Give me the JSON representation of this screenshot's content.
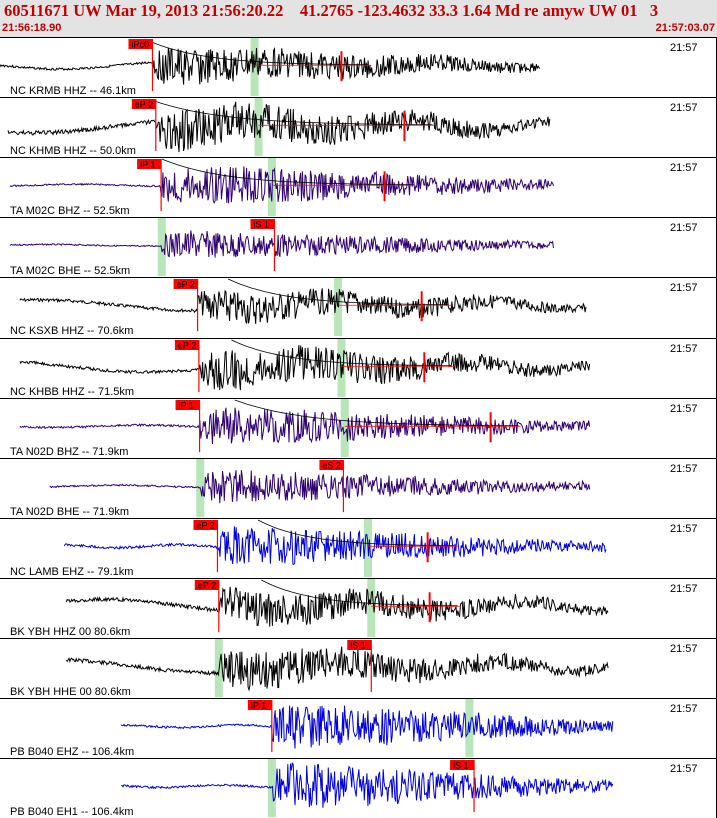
{
  "header": {
    "title": "60511671 UW Mar 19, 2013 21:56:20.22    41.2765 -123.4632 33.3 1.64 Md re amyw UW 01   3",
    "time_start": "21:56:18.90",
    "time_end": "21:57:03.07"
  },
  "colors": {
    "header_bg": "#e3e3e3",
    "header_text": "#c00000",
    "pick": "#ff0000",
    "window": "#b8e6b8",
    "trace_black": "#000000",
    "trace_purple": "#300070",
    "trace_blue": "#0000dd"
  },
  "chart_data": {
    "type": "line",
    "time_range": [
      "21:56:18.90",
      "21:57:03.07"
    ],
    "time_tick_label": "21:57",
    "traces": [
      {
        "label": "NC KRMB HHZ -- 46.1km",
        "pick": "iPc0",
        "pick_pos": 0.23,
        "window_pos": 0.384,
        "onset": 0.23,
        "amp_pre": 0.2,
        "amp_post": 0.75,
        "end": 0.815,
        "start": 0.0,
        "color": "black",
        "freq": 3.0,
        "spikes": [
          0.515
        ],
        "coda": true
      },
      {
        "label": "NC KHMB HHZ -- 50.0km",
        "pick": "eP 2",
        "pick_pos": 0.235,
        "window_pos": 0.39,
        "onset": 0.235,
        "amp_pre": 0.4,
        "amp_post": 0.85,
        "end": 0.83,
        "start": 0.012,
        "color": "black",
        "freq": 2.0,
        "spikes": [
          0.61
        ],
        "coda": true
      },
      {
        "label": "TA M02C BHZ -- 52.5km",
        "pick": "iP 1",
        "pick_pos": 0.243,
        "window_pos": 0.41,
        "onset": 0.243,
        "amp_pre": 0.05,
        "amp_post": 0.8,
        "end": 0.835,
        "start": 0.015,
        "color": "purple",
        "freq": 4.0,
        "spikes": [
          0.58
        ],
        "coda": true
      },
      {
        "label": "TA M02C BHE -- 52.5km",
        "pick": "iS 1",
        "pick_pos": 0.414,
        "window_pos": 0.244,
        "onset": 0.244,
        "amp_pre": 0.04,
        "amp_post": 0.55,
        "end": 0.835,
        "start": 0.015,
        "color": "purple",
        "freq": 4.0,
        "spikes": [],
        "coda": false
      },
      {
        "label": "NC KSXB HHZ -- 70.6km",
        "pick": "eP 2",
        "pick_pos": 0.298,
        "window_pos": 0.51,
        "onset": 0.298,
        "amp_pre": 0.28,
        "amp_post": 0.65,
        "end": 0.885,
        "start": 0.03,
        "color": "black",
        "freq": 2.2,
        "spikes": [
          0.636
        ],
        "coda": true
      },
      {
        "label": "NC KHBB HHZ -- 71.5km",
        "pick": "eP 2",
        "pick_pos": 0.3,
        "window_pos": 0.515,
        "onset": 0.3,
        "amp_pre": 0.3,
        "amp_post": 0.8,
        "end": 0.89,
        "start": 0.03,
        "color": "black",
        "freq": 2.2,
        "spikes": [
          0.64
        ],
        "coda": true
      },
      {
        "label": "TA N02D BHZ -- 71.9km",
        "pick": "iP 1",
        "pick_pos": 0.301,
        "window_pos": 0.52,
        "onset": 0.301,
        "amp_pre": 0.06,
        "amp_post": 0.75,
        "end": 0.89,
        "start": 0.03,
        "color": "purple",
        "freq": 4.0,
        "spikes": [
          0.74
        ],
        "coda": true
      },
      {
        "label": "TA N02D BHE -- 71.9km",
        "pick": "eS 2",
        "pick_pos": 0.518,
        "window_pos": 0.302,
        "onset": 0.302,
        "amp_pre": 0.05,
        "amp_post": 0.65,
        "end": 0.89,
        "start": 0.075,
        "color": "purple",
        "freq": 4.0,
        "spikes": [],
        "coda": false
      },
      {
        "label": "NC LAMB EHZ -- 79.1km",
        "pick": "eP 2",
        "pick_pos": 0.328,
        "window_pos": 0.555,
        "onset": 0.328,
        "amp_pre": 0.08,
        "amp_post": 0.75,
        "end": 0.915,
        "start": 0.097,
        "color": "blue",
        "freq": 6.0,
        "spikes": [
          0.645
        ],
        "coda": true
      },
      {
        "label": "BK YBH HHZ 00 80.6km",
        "pick": "eP 2",
        "pick_pos": 0.33,
        "window_pos": 0.56,
        "onset": 0.33,
        "amp_pre": 0.35,
        "amp_post": 0.7,
        "end": 0.918,
        "start": 0.1,
        "color": "black",
        "freq": 2.2,
        "spikes": [
          0.648
        ],
        "coda": true
      },
      {
        "label": "BK YBH HHE 00 80.6km",
        "pick": "iS 1",
        "pick_pos": 0.56,
        "window_pos": 0.33,
        "onset": 0.33,
        "amp_pre": 0.35,
        "amp_post": 0.75,
        "end": 0.918,
        "start": 0.1,
        "color": "black",
        "freq": 2.2,
        "spikes": [],
        "coda": false
      },
      {
        "label": "PB B040 EHZ -- 106.4km",
        "pick": "iP 1",
        "pick_pos": 0.41,
        "window_pos": 0.708,
        "onset": 0.41,
        "amp_pre": 0.06,
        "amp_post": 0.9,
        "end": 0.925,
        "start": 0.183,
        "color": "blue",
        "freq": 6.0,
        "spikes": [],
        "coda": false
      },
      {
        "label": "PB B040 EH1 -- 106.4km",
        "pick": "iS 1",
        "pick_pos": 0.715,
        "window_pos": 0.41,
        "onset": 0.41,
        "amp_pre": 0.06,
        "amp_post": 0.9,
        "end": 0.925,
        "start": 0.183,
        "color": "blue",
        "freq": 6.0,
        "spikes": [],
        "coda": false
      }
    ]
  }
}
